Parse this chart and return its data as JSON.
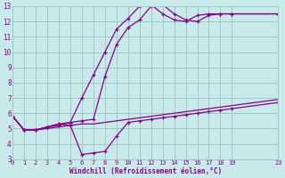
{
  "xlabel": "Windchill (Refroidissement éolien,°C)",
  "bg_color": "#c8eaea",
  "grid_color": "#a0c8c8",
  "line_color": "#880088",
  "xmin": 0,
  "xmax": 23,
  "ymin": 3,
  "ymax": 13,
  "xticks": [
    0,
    1,
    2,
    3,
    4,
    5,
    6,
    7,
    8,
    9,
    10,
    11,
    12,
    13,
    14,
    15,
    16,
    17,
    18,
    19,
    23
  ],
  "yticks": [
    3,
    4,
    5,
    6,
    7,
    8,
    9,
    10,
    11,
    12,
    13
  ],
  "line1_x": [
    0,
    1,
    2,
    3,
    4,
    5,
    6,
    7,
    8,
    9,
    10,
    11,
    12,
    13,
    14,
    15,
    16,
    17,
    18,
    19,
    23
  ],
  "line1_y": [
    5.8,
    4.9,
    4.9,
    5.1,
    5.2,
    5.4,
    7.0,
    8.5,
    10.0,
    11.5,
    12.2,
    13.0,
    13.1,
    12.5,
    12.1,
    12.0,
    12.4,
    12.5,
    12.5,
    12.5,
    12.5
  ],
  "line2_x": [
    0,
    1,
    2,
    3,
    4,
    5,
    6,
    7,
    8,
    9,
    10,
    11,
    12,
    13,
    14,
    15,
    16,
    17,
    18,
    19,
    23
  ],
  "line2_y": [
    5.8,
    4.9,
    4.9,
    5.1,
    5.3,
    5.4,
    5.5,
    5.6,
    8.4,
    10.5,
    11.6,
    12.1,
    13.0,
    13.1,
    12.5,
    12.1,
    12.0,
    12.4,
    12.5,
    12.5,
    12.5
  ],
  "line3_x": [
    0,
    1,
    2,
    3,
    4,
    5,
    6,
    7,
    8,
    9,
    10,
    11,
    12,
    13,
    14,
    15,
    16,
    17,
    18,
    19,
    23
  ],
  "line3_y": [
    5.8,
    4.9,
    4.9,
    5.0,
    5.1,
    5.2,
    5.3,
    5.3,
    5.4,
    5.5,
    5.6,
    5.7,
    5.8,
    5.9,
    6.0,
    6.1,
    6.2,
    6.3,
    6.4,
    6.5,
    6.9
  ],
  "line4_x": [
    0,
    1,
    2,
    3,
    4,
    5,
    6,
    7,
    8,
    9,
    10,
    11,
    12,
    13,
    14,
    15,
    16,
    17,
    18,
    19,
    23
  ],
  "line4_y": [
    5.8,
    4.9,
    4.9,
    5.1,
    5.3,
    5.2,
    3.3,
    3.4,
    3.5,
    4.5,
    5.4,
    5.5,
    5.6,
    5.7,
    5.8,
    5.9,
    6.0,
    6.1,
    6.2,
    6.3,
    6.7
  ]
}
